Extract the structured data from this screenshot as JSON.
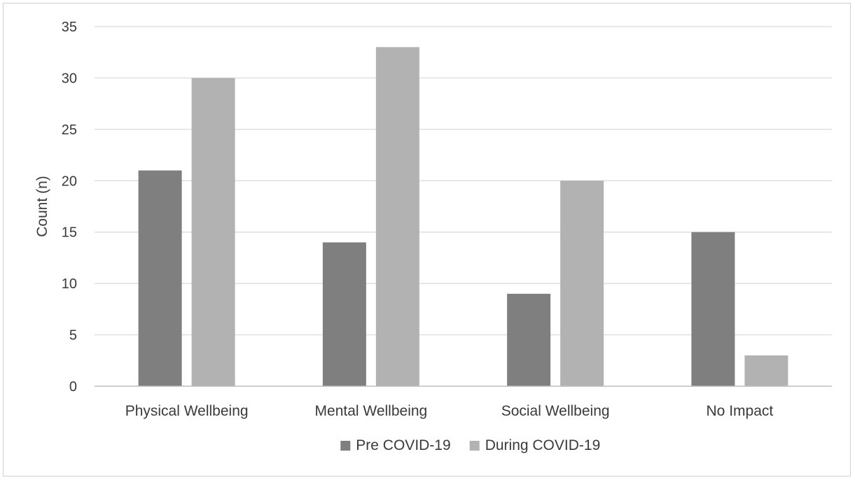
{
  "chart_data": {
    "type": "bar",
    "title": "",
    "xlabel": "",
    "ylabel": "Count (n)",
    "ylim": [
      0,
      35
    ],
    "yticks": [
      0,
      5,
      10,
      15,
      20,
      25,
      30,
      35
    ],
    "grid": "horizontal",
    "legend_position": "bottom",
    "categories": [
      "Physical Wellbeing",
      "Mental Wellbeing",
      "Social Wellbeing",
      "No Impact"
    ],
    "series": [
      {
        "name": "Pre COVID-19",
        "color": "#7f7f7f",
        "values": [
          21,
          14,
          9,
          15
        ]
      },
      {
        "name": "During COVID-19",
        "color": "#b2b2b2",
        "values": [
          30,
          33,
          20,
          3
        ]
      }
    ]
  }
}
